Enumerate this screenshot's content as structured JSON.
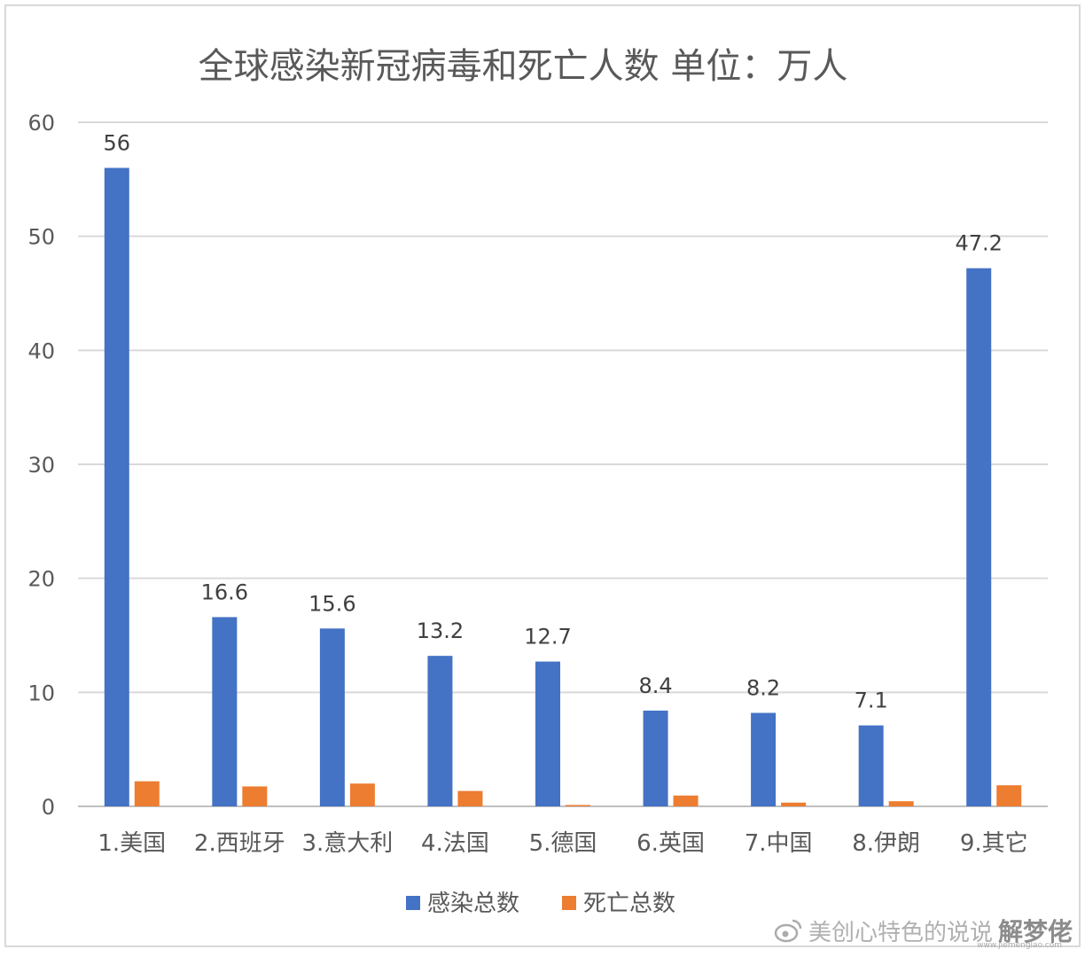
{
  "chart_data": {
    "type": "bar",
    "title": "全球感染新冠病毒和死亡人数 单位：万人",
    "categories": [
      "1.美国",
      "2.西班牙",
      "3.意大利",
      "4.法国",
      "5.德国",
      "6.英国",
      "7.中国",
      "8.伊朗",
      "9.其它"
    ],
    "series": [
      {
        "name": "感染总数",
        "color": "#4472C4",
        "values": [
          56,
          16.6,
          15.6,
          13.2,
          12.7,
          8.4,
          8.2,
          7.1,
          47.2
        ],
        "data_labels": true
      },
      {
        "name": "死亡总数",
        "color": "#ED7D31",
        "values": [
          2.2,
          1.75,
          2.0,
          1.35,
          0.12,
          0.95,
          0.33,
          0.45,
          1.85
        ],
        "data_labels": false
      }
    ],
    "ylim": [
      0,
      60
    ],
    "yticks": [
      0,
      10,
      20,
      30,
      40,
      50,
      60
    ],
    "grid": true,
    "legend_position": "bottom",
    "xlabel": "",
    "ylabel": ""
  },
  "watermark": {
    "text": "美创心特色的说说",
    "brand": "解梦佬",
    "site": "www.jiemenglao.com",
    "icon": "weibo-icon"
  }
}
